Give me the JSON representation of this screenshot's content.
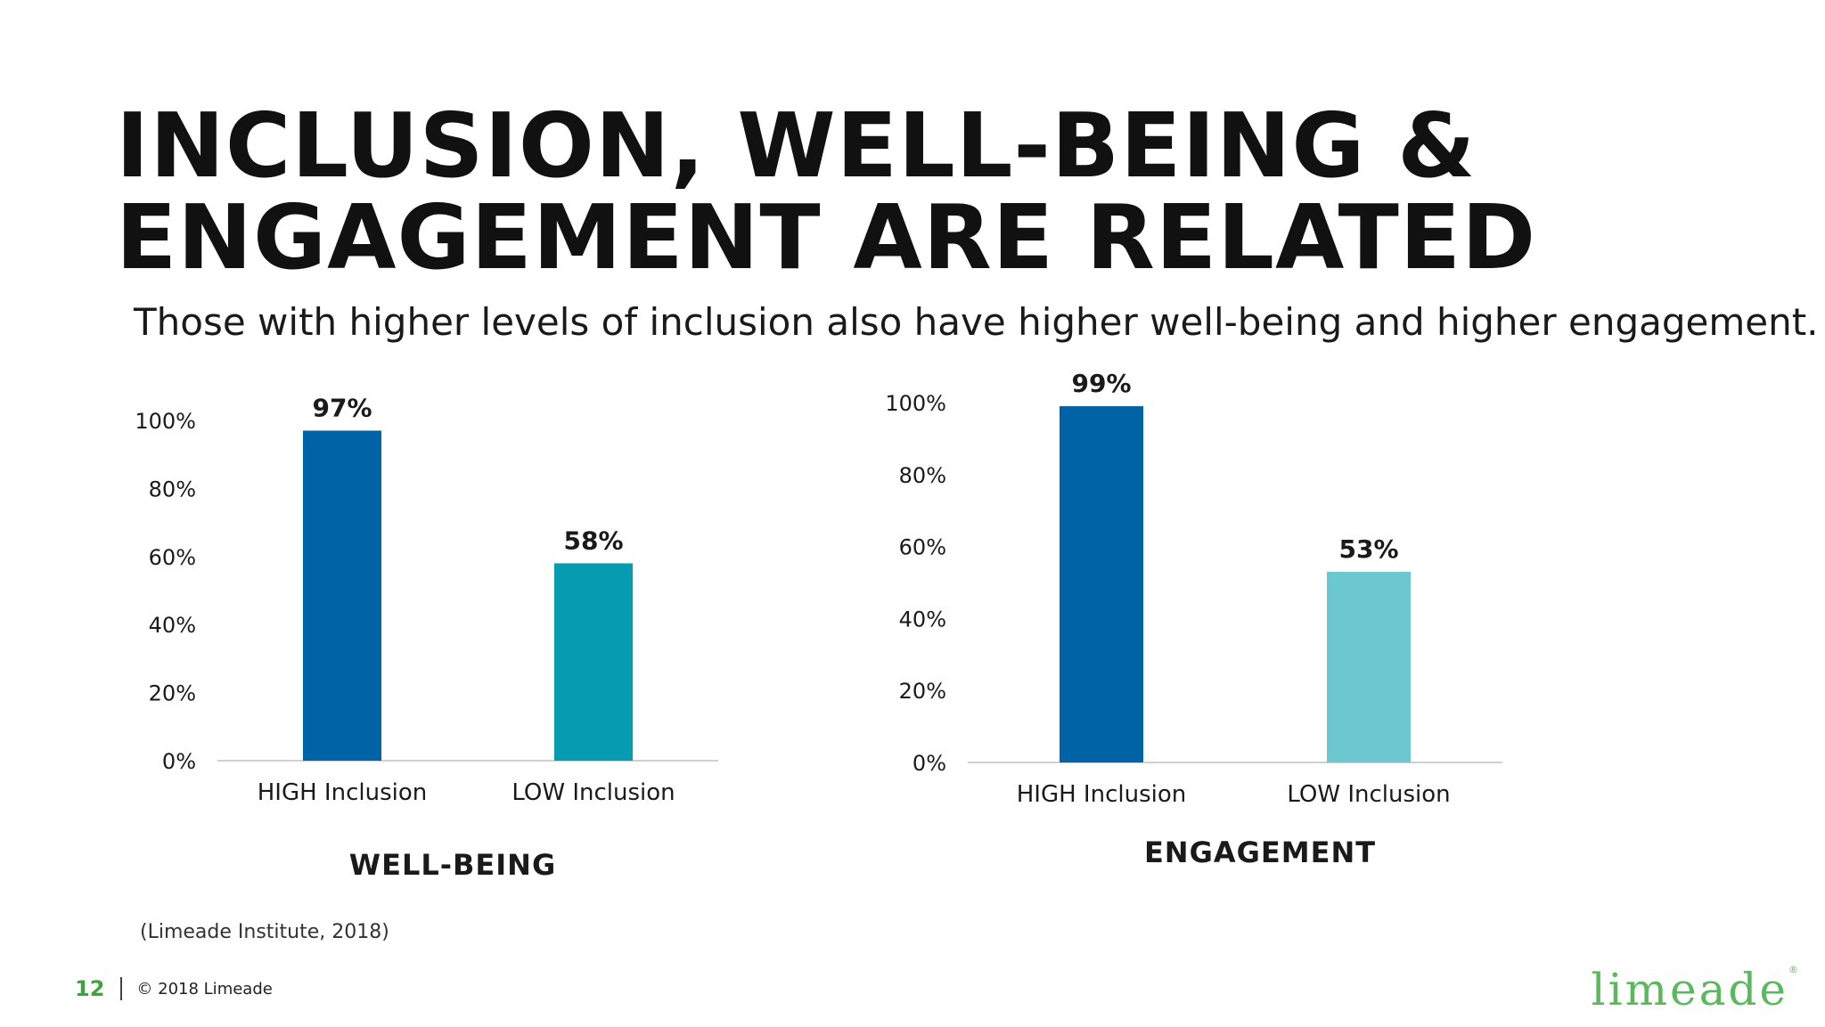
{
  "slide": {
    "title_line1": "INCLUSION, WELL-BEING &",
    "title_line2": "ENGAGEMENT ARE RELATED",
    "subtitle": "Those with higher levels of inclusion also have higher well-being and higher engagement.",
    "source": "(Limeade Institute, 2018)"
  },
  "footer": {
    "page_number": "12",
    "copyright": "© 2018 Limeade",
    "logo_text": "limeade",
    "logo_mark": "®"
  },
  "colors": {
    "high_wellbeing": "#0063a5",
    "low_wellbeing": "#059bb0",
    "high_engagement": "#0063a5",
    "low_engagement": "#6cc8d0",
    "axis": "#d0d0d0",
    "logo": "#5cb85c",
    "page_number": "#3aa63a"
  },
  "chart_data": [
    {
      "type": "bar",
      "title": "WELL-BEING",
      "categories": [
        "HIGH Inclusion",
        "LOW Inclusion"
      ],
      "values": [
        97,
        58
      ],
      "value_labels": [
        "97%",
        "58%"
      ],
      "ylim": [
        0,
        100
      ],
      "yticks": [
        0,
        20,
        40,
        60,
        80,
        100
      ],
      "ytick_labels": [
        "0%",
        "20%",
        "40%",
        "60%",
        "80%",
        "100%"
      ],
      "grid": false,
      "legend": "none"
    },
    {
      "type": "bar",
      "title": "ENGAGEMENT",
      "categories": [
        "HIGH Inclusion",
        "LOW Inclusion"
      ],
      "values": [
        99,
        53
      ],
      "value_labels": [
        "99%",
        "53%"
      ],
      "ylim": [
        0,
        100
      ],
      "yticks": [
        0,
        20,
        40,
        60,
        80,
        100
      ],
      "ytick_labels": [
        "0%",
        "20%",
        "40%",
        "60%",
        "80%",
        "100%"
      ],
      "grid": false,
      "legend": "none"
    }
  ]
}
